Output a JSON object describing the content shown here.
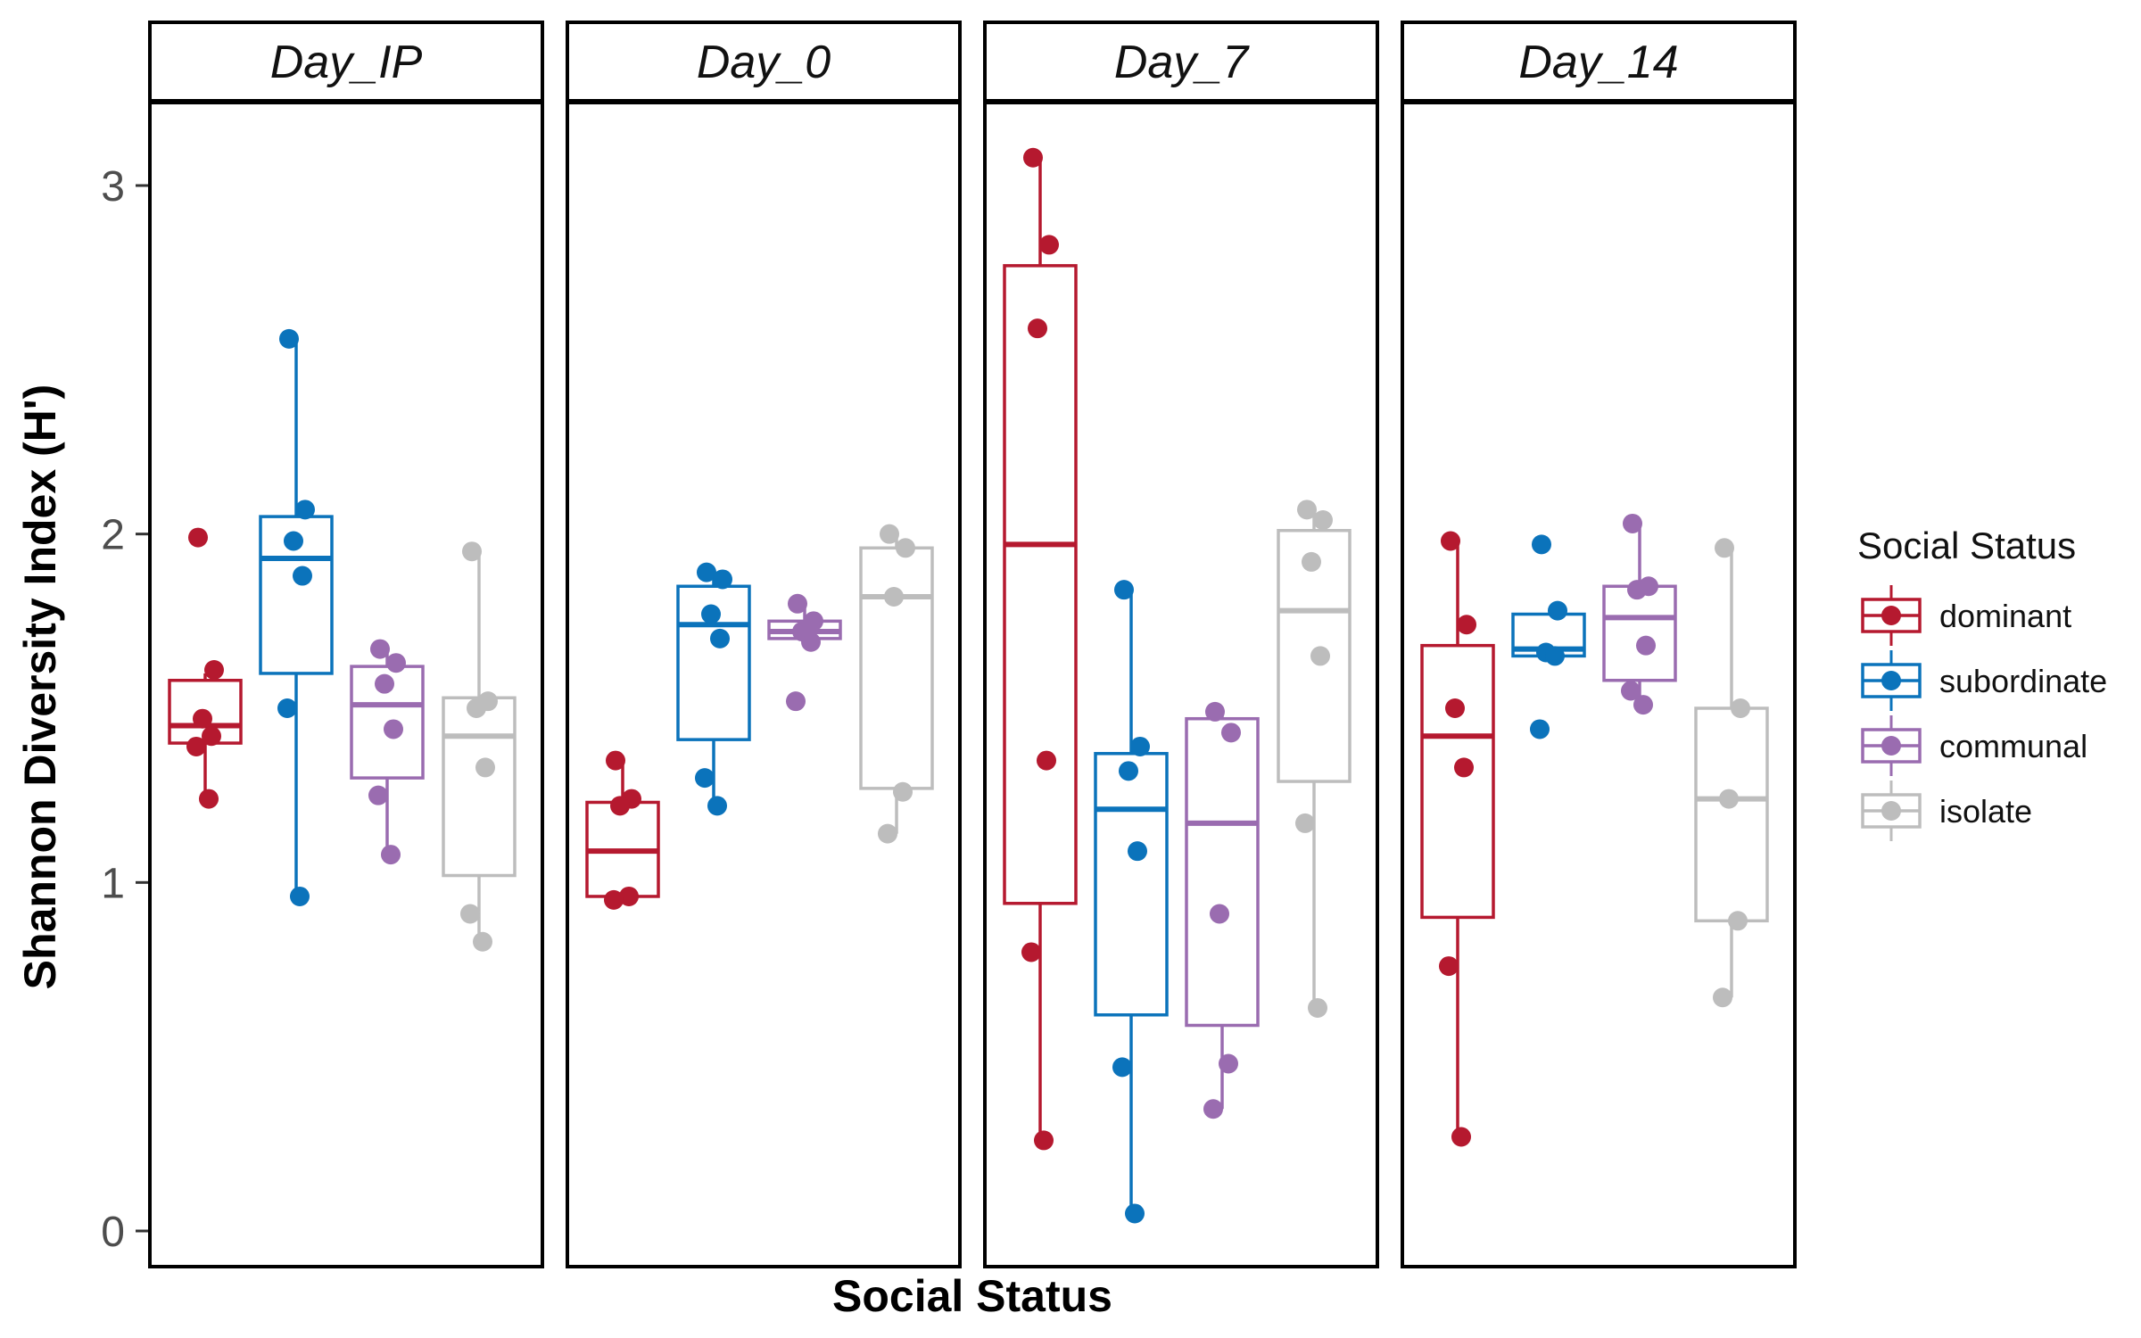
{
  "chart_data": {
    "type": "box",
    "xlabel": "Social Status",
    "ylabel": "Shannon Diversity Index (H')",
    "ylim": [
      -0.15,
      3.23
    ],
    "yticks": [
      0,
      1,
      2,
      3
    ],
    "grid": false,
    "legend": {
      "title": "Social Status",
      "position": "right",
      "entries": [
        "dominant",
        "subordinate",
        "communal",
        "isolate"
      ]
    },
    "colors": {
      "dominant": "#b5192f",
      "subordinate": "#0b73bb",
      "communal": "#9a6cb0",
      "isolate": "#bdbdbd"
    },
    "groups": [
      "dominant",
      "subordinate",
      "communal",
      "isolate"
    ],
    "panels": [
      {
        "label": "Day_IP",
        "boxes": [
          {
            "group": "dominant",
            "q1": 1.4,
            "median": 1.45,
            "q3": 1.58,
            "whisker_low": 1.24,
            "whisker_high": 1.6,
            "points": [
              1.99,
              1.61,
              1.47,
              1.42,
              1.39,
              1.24
            ]
          },
          {
            "group": "subordinate",
            "q1": 1.6,
            "median": 1.93,
            "q3": 2.05,
            "whisker_low": 0.96,
            "whisker_high": 2.56,
            "points": [
              2.56,
              2.07,
              1.98,
              1.88,
              1.5,
              0.96
            ]
          },
          {
            "group": "communal",
            "q1": 1.3,
            "median": 1.51,
            "q3": 1.62,
            "whisker_low": 1.08,
            "whisker_high": 1.67,
            "points": [
              1.67,
              1.63,
              1.57,
              1.44,
              1.25,
              1.08
            ]
          },
          {
            "group": "isolate",
            "q1": 1.02,
            "median": 1.42,
            "q3": 1.53,
            "whisker_low": 0.83,
            "whisker_high": 1.95,
            "points": [
              1.95,
              1.52,
              1.5,
              1.33,
              0.91,
              0.83
            ]
          }
        ]
      },
      {
        "label": "Day_0",
        "boxes": [
          {
            "group": "dominant",
            "q1": 0.96,
            "median": 1.09,
            "q3": 1.23,
            "whisker_low": 0.95,
            "whisker_high": 1.35,
            "points": [
              1.35,
              1.24,
              1.22,
              0.96,
              0.95
            ]
          },
          {
            "group": "subordinate",
            "q1": 1.41,
            "median": 1.74,
            "q3": 1.85,
            "whisker_low": 1.22,
            "whisker_high": 1.89,
            "points": [
              1.89,
              1.87,
              1.77,
              1.7,
              1.3,
              1.22
            ]
          },
          {
            "group": "communal",
            "q1": 1.7,
            "median": 1.72,
            "q3": 1.75,
            "whisker_low": 1.7,
            "whisker_high": 1.8,
            "points": [
              1.8,
              1.75,
              1.72,
              1.69,
              1.52
            ]
          },
          {
            "group": "isolate",
            "q1": 1.27,
            "median": 1.82,
            "q3": 1.96,
            "whisker_low": 1.14,
            "whisker_high": 2.0,
            "points": [
              2.0,
              1.96,
              1.82,
              1.26,
              1.14
            ]
          }
        ]
      },
      {
        "label": "Day_7",
        "boxes": [
          {
            "group": "dominant",
            "q1": 0.94,
            "median": 1.97,
            "q3": 2.77,
            "whisker_low": 0.26,
            "whisker_high": 3.08,
            "points": [
              3.08,
              2.83,
              2.59,
              1.35,
              0.8,
              0.26
            ]
          },
          {
            "group": "subordinate",
            "q1": 0.62,
            "median": 1.21,
            "q3": 1.37,
            "whisker_low": 0.05,
            "whisker_high": 1.84,
            "points": [
              1.84,
              1.39,
              1.32,
              1.09,
              0.47,
              0.05
            ]
          },
          {
            "group": "communal",
            "q1": 0.59,
            "median": 1.17,
            "q3": 1.47,
            "whisker_low": 0.35,
            "whisker_high": 1.49,
            "points": [
              1.49,
              1.43,
              0.91,
              0.48,
              0.35
            ]
          },
          {
            "group": "isolate",
            "q1": 1.29,
            "median": 1.78,
            "q3": 2.01,
            "whisker_low": 0.64,
            "whisker_high": 2.07,
            "points": [
              2.07,
              2.04,
              1.92,
              1.65,
              1.17,
              0.64
            ]
          }
        ]
      },
      {
        "label": "Day_14",
        "boxes": [
          {
            "group": "dominant",
            "q1": 0.9,
            "median": 1.42,
            "q3": 1.68,
            "whisker_low": 0.27,
            "whisker_high": 1.98,
            "points": [
              1.98,
              1.74,
              1.5,
              1.33,
              0.76,
              0.27
            ]
          },
          {
            "group": "subordinate",
            "q1": 1.65,
            "median": 1.67,
            "q3": 1.77,
            "whisker_low": 1.65,
            "whisker_high": 1.77,
            "points": [
              1.97,
              1.78,
              1.66,
              1.65,
              1.44
            ]
          },
          {
            "group": "communal",
            "q1": 1.58,
            "median": 1.76,
            "q3": 1.85,
            "whisker_low": 1.51,
            "whisker_high": 2.03,
            "points": [
              2.03,
              1.85,
              1.84,
              1.68,
              1.55,
              1.51
            ]
          },
          {
            "group": "isolate",
            "q1": 0.89,
            "median": 1.24,
            "q3": 1.5,
            "whisker_low": 0.67,
            "whisker_high": 1.96,
            "points": [
              1.96,
              1.5,
              1.24,
              0.89,
              0.67
            ]
          }
        ]
      }
    ]
  }
}
